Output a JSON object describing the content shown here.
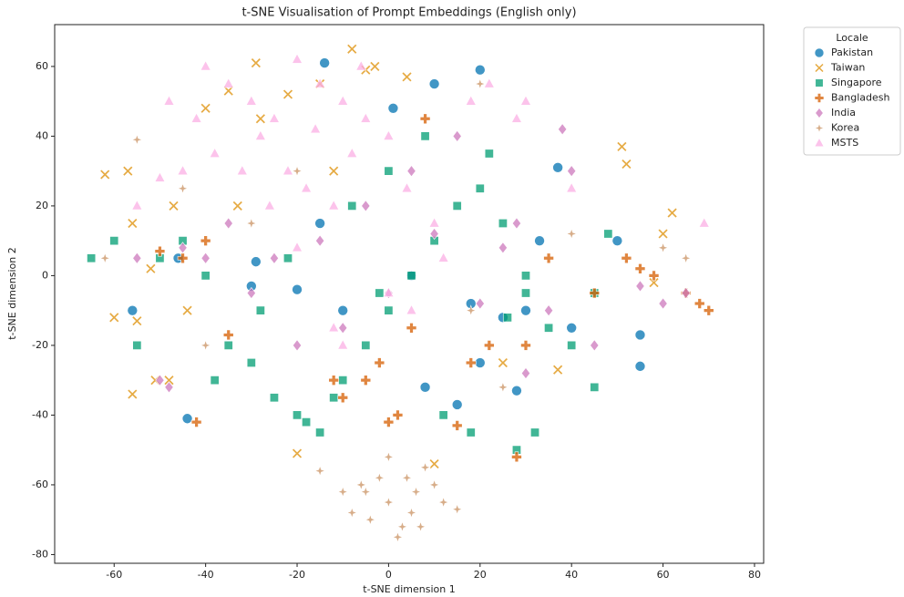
{
  "chart_data": {
    "type": "scatter",
    "title": "t-SNE Visualisation of Prompt Embeddings (English only)",
    "x_label": "t-SNE dimension 1",
    "y_label": "t-SNE dimension 2",
    "legend_title": "Locale",
    "legend_position": "outside-upper-right",
    "grid": false,
    "xlim": [
      -73,
      82
    ],
    "ylim": [
      -82.5,
      72
    ],
    "xticks": [
      -60,
      -40,
      -20,
      0,
      20,
      40,
      60,
      80
    ],
    "yticks": [
      -80,
      -60,
      -40,
      -20,
      0,
      20,
      40,
      60
    ],
    "series": [
      {
        "name": "Pakistan",
        "color": "#0173b2",
        "marker": "circle",
        "x": [
          -14,
          20,
          10,
          -46,
          -29,
          -15,
          -10,
          5,
          20,
          37,
          50,
          55,
          25,
          30,
          28,
          -30,
          -44,
          1,
          15,
          33,
          55,
          -56,
          -20,
          18,
          40,
          8
        ],
        "y": [
          61,
          59,
          55,
          5,
          4,
          15,
          -10,
          0,
          -25,
          31,
          10,
          -26,
          -12,
          -10,
          -33,
          -3,
          -41,
          48,
          -37,
          10,
          -17,
          -10,
          -4,
          -8,
          -15,
          -32
        ]
      },
      {
        "name": "Taiwan",
        "color": "#de8f05",
        "marker": "x",
        "x": [
          -62,
          -57,
          -60,
          -56,
          -51,
          -40,
          -35,
          -33,
          -29,
          -28,
          -8,
          -3,
          -5,
          -12,
          -22,
          -47,
          -56,
          -52,
          -44,
          37,
          51,
          52,
          60,
          62,
          58,
          25,
          4,
          -15,
          -48,
          -55,
          -20,
          10
        ],
        "y": [
          29,
          30,
          -12,
          -34,
          -30,
          48,
          53,
          20,
          61,
          45,
          65,
          60,
          59,
          30,
          52,
          20,
          15,
          2,
          -10,
          -27,
          37,
          32,
          12,
          18,
          -2,
          -25,
          57,
          55,
          -30,
          -13,
          -51,
          -54
        ]
      },
      {
        "name": "Singapore",
        "color": "#029e73",
        "marker": "square",
        "x": [
          -20,
          -15,
          -18,
          -25,
          -10,
          -5,
          0,
          5,
          10,
          15,
          20,
          25,
          30,
          35,
          -30,
          -35,
          -40,
          -45,
          -50,
          -55,
          -28,
          -22,
          -12,
          -8,
          0,
          8,
          12,
          18,
          28,
          32,
          40,
          45,
          -60,
          -65,
          26,
          30,
          45,
          -38,
          -2,
          22,
          48
        ],
        "y": [
          -40,
          -45,
          -42,
          -35,
          -30,
          -20,
          -10,
          0,
          10,
          20,
          25,
          15,
          0,
          -15,
          -25,
          -20,
          0,
          10,
          5,
          -20,
          -10,
          5,
          -35,
          20,
          30,
          40,
          -40,
          -45,
          -50,
          -45,
          -20,
          -32,
          10,
          5,
          -12,
          -5,
          -5,
          -30,
          -5,
          35,
          12
        ]
      },
      {
        "name": "Bangladesh",
        "color": "#d55e00",
        "marker": "plus",
        "x": [
          55,
          58,
          52,
          68,
          70,
          65,
          -10,
          -5,
          0,
          2,
          5,
          8,
          -45,
          -42,
          35,
          30,
          18,
          -12,
          -35,
          -50,
          -40,
          -2,
          22,
          28,
          15,
          45
        ],
        "y": [
          2,
          0,
          5,
          -8,
          -10,
          -5,
          -35,
          -30,
          -42,
          -40,
          -15,
          45,
          5,
          -42,
          5,
          -20,
          -25,
          -30,
          -17,
          7,
          10,
          -25,
          -20,
          -52,
          -43,
          -5
        ]
      },
      {
        "name": "India",
        "color": "#cc78bc",
        "marker": "diamond",
        "x": [
          -45,
          -50,
          -40,
          -30,
          -20,
          -10,
          0,
          10,
          20,
          30,
          40,
          -5,
          -15,
          5,
          15,
          25,
          35,
          60,
          65,
          55,
          -48,
          -35,
          -25,
          28,
          38,
          45,
          -55
        ],
        "y": [
          8,
          -30,
          5,
          -5,
          -20,
          -15,
          -5,
          12,
          -8,
          -28,
          30,
          20,
          10,
          30,
          40,
          8,
          -10,
          -8,
          -5,
          -3,
          -32,
          15,
          5,
          15,
          42,
          -20,
          5
        ]
      },
      {
        "name": "Korea",
        "color": "#ca9161",
        "marker": "star",
        "x": [
          0,
          5,
          -5,
          10,
          3,
          -2,
          8,
          12,
          -8,
          2,
          6,
          -4,
          15,
          -10,
          0,
          7,
          4,
          -6,
          -30,
          -20,
          -45,
          -55,
          20,
          40,
          60,
          -40,
          -62,
          65,
          -15,
          25,
          18
        ],
        "y": [
          -65,
          -68,
          -62,
          -60,
          -72,
          -58,
          -55,
          -65,
          -68,
          -75,
          -62,
          -70,
          -67,
          -62,
          -52,
          -72,
          -58,
          -60,
          15,
          30,
          25,
          39,
          55,
          12,
          8,
          -20,
          5,
          5,
          -56,
          -32,
          -10
        ]
      },
      {
        "name": "MSTS",
        "color": "#fbafe4",
        "marker": "triangle",
        "x": [
          -40,
          -35,
          -30,
          -25,
          -20,
          -15,
          -10,
          -5,
          0,
          -38,
          -28,
          -22,
          -18,
          -12,
          -8,
          -45,
          -42,
          -32,
          -26,
          -16,
          -6,
          4,
          10,
          18,
          22,
          -50,
          -55,
          -20,
          -10,
          0,
          5,
          12,
          28,
          30,
          -12,
          40,
          69,
          -48
        ],
        "y": [
          60,
          55,
          50,
          45,
          62,
          55,
          50,
          45,
          40,
          35,
          40,
          30,
          25,
          20,
          35,
          30,
          45,
          30,
          20,
          42,
          60,
          25,
          15,
          50,
          55,
          28,
          20,
          8,
          -20,
          -5,
          -10,
          5,
          45,
          50,
          -15,
          25,
          15,
          50
        ]
      }
    ]
  }
}
